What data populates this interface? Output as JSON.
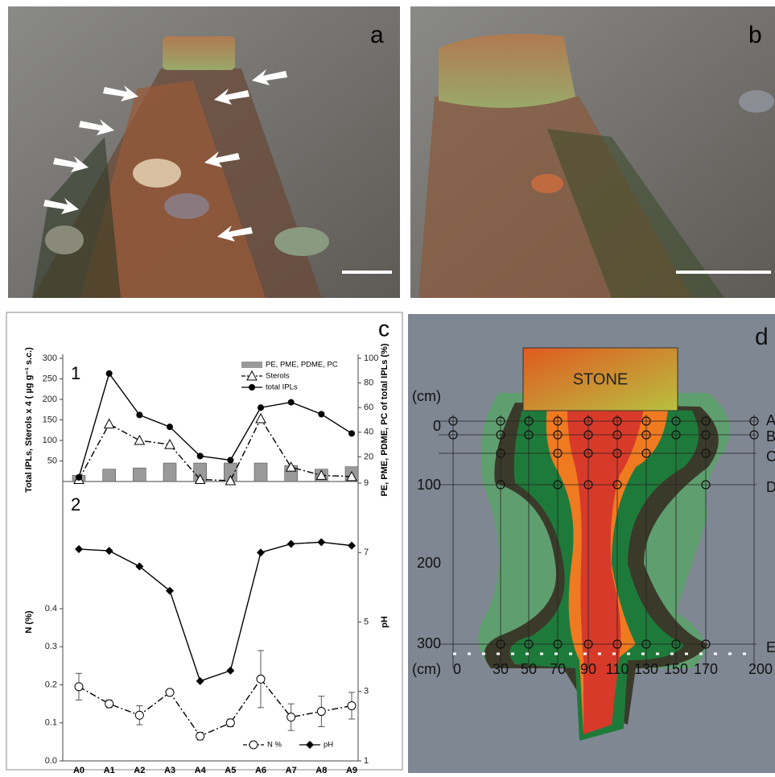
{
  "panels": {
    "a": "a",
    "b": "b",
    "c": "c"
  },
  "chart_data": [
    {
      "type": "combo",
      "label": "1",
      "ylabel": "Total IPLs, Sterols x 4 ( µg g⁻¹ s.c.)",
      "y2label": "PE, PME, PDME, PC of total IPLs (%)",
      "ylim": [
        0,
        300
      ],
      "yticks": [
        50,
        100,
        150,
        200,
        250,
        300
      ],
      "y2lim": [
        0,
        100
      ],
      "y2ticks": [
        20,
        40,
        60,
        80,
        100
      ],
      "legend": "upper right",
      "series": [
        {
          "name": "PE, PME, PDME, PC",
          "type": "bar",
          "axis": "y2",
          "color": "#9a9a9a",
          "values": [
            5,
            10,
            11,
            15,
            15,
            15,
            15,
            13,
            10,
            12
          ]
        },
        {
          "name": "Sterols",
          "type": "line",
          "marker": "triangle",
          "linestyle": "dashdot",
          "color": "#000000",
          "values": [
            5,
            140,
            100,
            90,
            5,
            2,
            153,
            35,
            15,
            12
          ]
        },
        {
          "name": "total IPLs",
          "type": "line",
          "marker": "circle",
          "linestyle": "solid",
          "color": "#000000",
          "values": [
            10,
            263,
            162,
            133,
            62,
            52,
            180,
            193,
            164,
            117
          ]
        }
      ]
    },
    {
      "type": "line",
      "label": "2",
      "ylabel": "N (%)",
      "y2label": "pH",
      "categories": [
        "A0",
        "A1",
        "A2",
        "A3",
        "A4",
        "A5",
        "A6",
        "A7",
        "A8",
        "A9"
      ],
      "ylim": [
        0,
        0.73
      ],
      "yticks": [
        {
          "value": 0,
          "label": "0.0"
        },
        0.1,
        0.2,
        0.3,
        0.4
      ],
      "y2lim": [
        1,
        9
      ],
      "y2ticks": [
        1,
        3,
        5,
        7,
        9
      ],
      "legend": "lower right",
      "series": [
        {
          "name": "N %",
          "type": "line",
          "marker": "open-circle",
          "linestyle": "dashdot",
          "color": "#000000",
          "values": [
            0.195,
            0.15,
            0.12,
            0.18,
            0.065,
            0.1,
            0.215,
            0.115,
            0.13,
            0.145
          ],
          "errors": [
            0.035,
            0.01,
            0.025,
            0.005,
            0.01,
            0.01,
            0.075,
            0.035,
            0.04,
            0.035
          ]
        },
        {
          "name": "pH",
          "type": "line",
          "axis": "y2",
          "marker": "diamond",
          "linestyle": "solid",
          "color": "#000000",
          "values": [
            7.1,
            7.05,
            6.6,
            5.9,
            3.3,
            3.6,
            7.0,
            7.25,
            7.3,
            7.2
          ]
        }
      ]
    }
  ],
  "diagram": {
    "panel": "d",
    "stone": "STONE",
    "cm_top": "(cm)",
    "cm_bottom": "(cm)",
    "depths": [
      0,
      100,
      200,
      300
    ],
    "widths": [
      0,
      30,
      50,
      70,
      90,
      110,
      130,
      150,
      170,
      200
    ],
    "rows": [
      "A",
      "B",
      "C",
      "D",
      "E"
    ]
  }
}
